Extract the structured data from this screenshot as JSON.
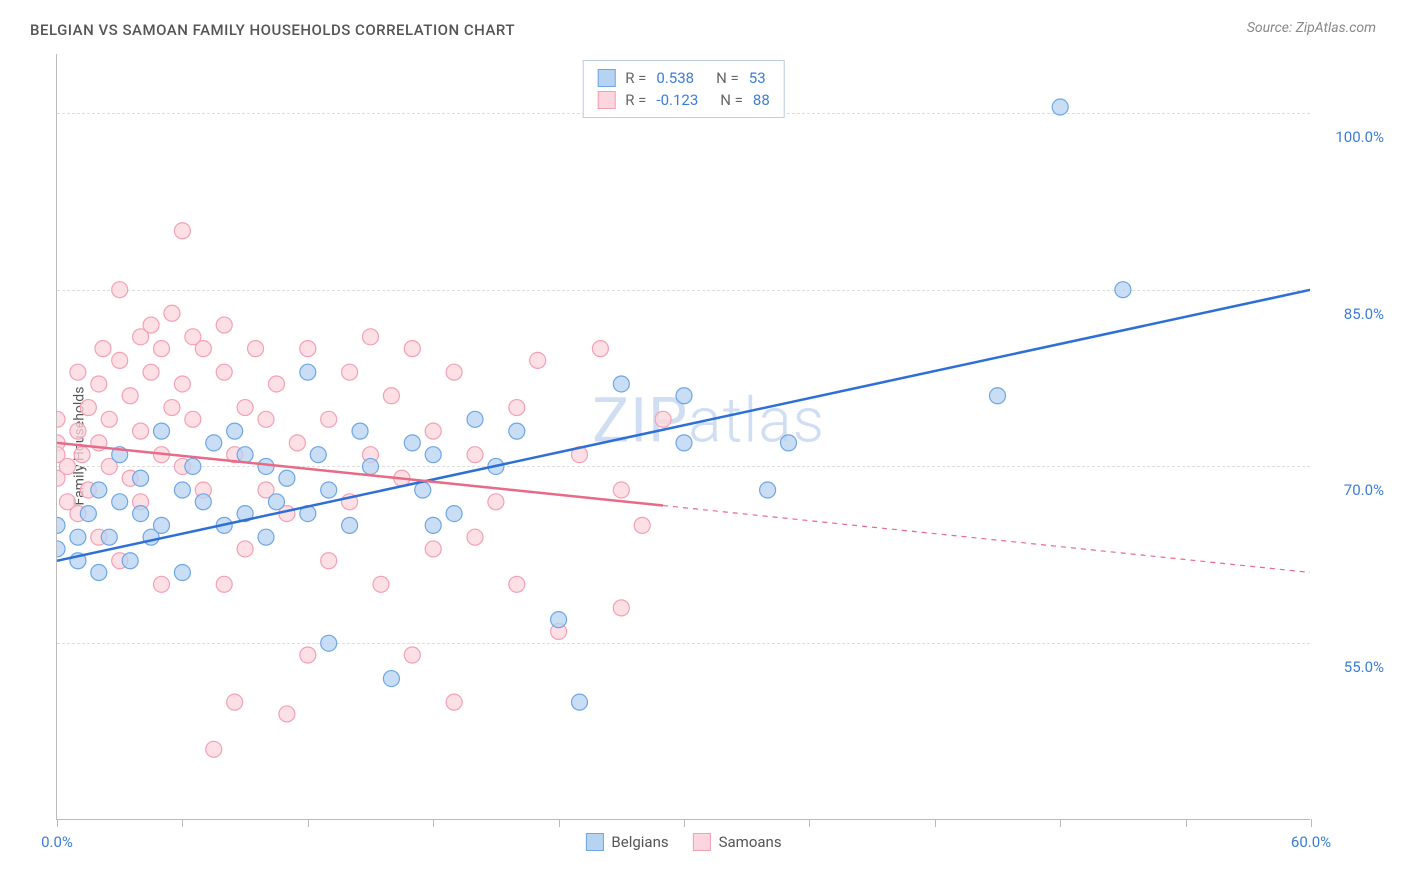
{
  "title": "BELGIAN VS SAMOAN FAMILY HOUSEHOLDS CORRELATION CHART",
  "source": "Source: ZipAtlas.com",
  "ylabel": "Family Households",
  "watermark_zip": "ZIP",
  "watermark_atlas": "atlas",
  "chart": {
    "type": "scatter",
    "xlim": [
      0,
      60
    ],
    "ylim": [
      40,
      105
    ],
    "x_ticks": [
      0,
      6,
      12,
      18,
      24,
      30,
      36,
      42,
      48,
      54,
      60
    ],
    "x_tick_labels": {
      "0": "0.0%",
      "60": "60.0%"
    },
    "y_ticks": [
      55,
      70,
      85,
      100
    ],
    "y_tick_labels": {
      "55": "55.0%",
      "70": "70.0%",
      "85": "85.0%",
      "100": "100.0%"
    },
    "grid_color": "#dddddd",
    "ytick_color": "#3b7dd8",
    "xtick_color": "#3b7dd8",
    "series": [
      {
        "name": "Belgians",
        "marker_fill": "#b7d3f2",
        "marker_stroke": "#6ea6e5",
        "marker_radius": 8,
        "line_color": "#2e6fd6",
        "line_width": 2.5,
        "r": "0.538",
        "n": "53",
        "regression": {
          "x1": 0,
          "y1": 62,
          "x2": 60,
          "y2": 85,
          "solid_until": 60
        },
        "points": [
          [
            0,
            63
          ],
          [
            0,
            65
          ],
          [
            1,
            62
          ],
          [
            1,
            64
          ],
          [
            1.5,
            66
          ],
          [
            2,
            61
          ],
          [
            2,
            68
          ],
          [
            2.5,
            64
          ],
          [
            3,
            71
          ],
          [
            3,
            67
          ],
          [
            3.5,
            62
          ],
          [
            4,
            69
          ],
          [
            4,
            66
          ],
          [
            4.5,
            64
          ],
          [
            5,
            73
          ],
          [
            5,
            65
          ],
          [
            6,
            61
          ],
          [
            6,
            68
          ],
          [
            6.5,
            70
          ],
          [
            7,
            67
          ],
          [
            7.5,
            72
          ],
          [
            8,
            65
          ],
          [
            8.5,
            73
          ],
          [
            9,
            66
          ],
          [
            9,
            71
          ],
          [
            10,
            64
          ],
          [
            10,
            70
          ],
          [
            10.5,
            67
          ],
          [
            11,
            69
          ],
          [
            12,
            78
          ],
          [
            12,
            66
          ],
          [
            12.5,
            71
          ],
          [
            13,
            68
          ],
          [
            13,
            55
          ],
          [
            14,
            65
          ],
          [
            14.5,
            73
          ],
          [
            15,
            70
          ],
          [
            16,
            52
          ],
          [
            17,
            72
          ],
          [
            17.5,
            68
          ],
          [
            18,
            71
          ],
          [
            18,
            65
          ],
          [
            19,
            66
          ],
          [
            20,
            74
          ],
          [
            21,
            70
          ],
          [
            22,
            73
          ],
          [
            24,
            57
          ],
          [
            25,
            50
          ],
          [
            27,
            77
          ],
          [
            30,
            72
          ],
          [
            30,
            76
          ],
          [
            34,
            68
          ],
          [
            35,
            72
          ],
          [
            45,
            76
          ],
          [
            48,
            100.5
          ],
          [
            51,
            85
          ]
        ]
      },
      {
        "name": "Samoans",
        "marker_fill": "#fcd6de",
        "marker_stroke": "#f3a0b2",
        "marker_radius": 8,
        "line_color": "#e86a87",
        "line_width": 2.5,
        "r": "-0.123",
        "n": "88",
        "regression": {
          "x1": 0,
          "y1": 72,
          "x2": 60,
          "y2": 61,
          "solid_until": 29
        },
        "points": [
          [
            0,
            72
          ],
          [
            0,
            69
          ],
          [
            0,
            71
          ],
          [
            0,
            74
          ],
          [
            0.5,
            67
          ],
          [
            0.5,
            70
          ],
          [
            1,
            73
          ],
          [
            1,
            66
          ],
          [
            1,
            78
          ],
          [
            1.2,
            71
          ],
          [
            1.5,
            75
          ],
          [
            1.5,
            68
          ],
          [
            2,
            77
          ],
          [
            2,
            64
          ],
          [
            2,
            72
          ],
          [
            2.2,
            80
          ],
          [
            2.5,
            74
          ],
          [
            2.5,
            70
          ],
          [
            3,
            79
          ],
          [
            3,
            62
          ],
          [
            3,
            85
          ],
          [
            3.5,
            76
          ],
          [
            3.5,
            69
          ],
          [
            4,
            81
          ],
          [
            4,
            73
          ],
          [
            4,
            67
          ],
          [
            4.5,
            78
          ],
          [
            4.5,
            82
          ],
          [
            5,
            71
          ],
          [
            5,
            80
          ],
          [
            5,
            60
          ],
          [
            5.5,
            75
          ],
          [
            5.5,
            83
          ],
          [
            6,
            77
          ],
          [
            6,
            70
          ],
          [
            6,
            90
          ],
          [
            6.5,
            74
          ],
          [
            6.5,
            81
          ],
          [
            7,
            80
          ],
          [
            7,
            68
          ],
          [
            7.5,
            46
          ],
          [
            8,
            78
          ],
          [
            8,
            60
          ],
          [
            8,
            82
          ],
          [
            8.5,
            71
          ],
          [
            8.5,
            50
          ],
          [
            9,
            75
          ],
          [
            9,
            63
          ],
          [
            9.5,
            80
          ],
          [
            10,
            68
          ],
          [
            10,
            74
          ],
          [
            10.5,
            77
          ],
          [
            11,
            66
          ],
          [
            11,
            49
          ],
          [
            11.5,
            72
          ],
          [
            12,
            54
          ],
          [
            12,
            80
          ],
          [
            13,
            74
          ],
          [
            13,
            62
          ],
          [
            14,
            78
          ],
          [
            14,
            67
          ],
          [
            15,
            71
          ],
          [
            15,
            81
          ],
          [
            15.5,
            60
          ],
          [
            16,
            76
          ],
          [
            16.5,
            69
          ],
          [
            17,
            54
          ],
          [
            17,
            80
          ],
          [
            18,
            73
          ],
          [
            18,
            63
          ],
          [
            19,
            78
          ],
          [
            19,
            50
          ],
          [
            20,
            71
          ],
          [
            20,
            64
          ],
          [
            21,
            67
          ],
          [
            22,
            75
          ],
          [
            22,
            60
          ],
          [
            23,
            79
          ],
          [
            24,
            56
          ],
          [
            25,
            71
          ],
          [
            26,
            80
          ],
          [
            27,
            58
          ],
          [
            27,
            68
          ],
          [
            28,
            65
          ],
          [
            29,
            74
          ]
        ]
      }
    ]
  },
  "legend_top": {
    "r_label": "R =",
    "n_label": "N ="
  },
  "legend_bottom": [
    {
      "label": "Belgians",
      "fill": "#b7d3f2",
      "stroke": "#6ea6e5"
    },
    {
      "label": "Samoans",
      "fill": "#fcd6de",
      "stroke": "#f3a0b2"
    }
  ]
}
